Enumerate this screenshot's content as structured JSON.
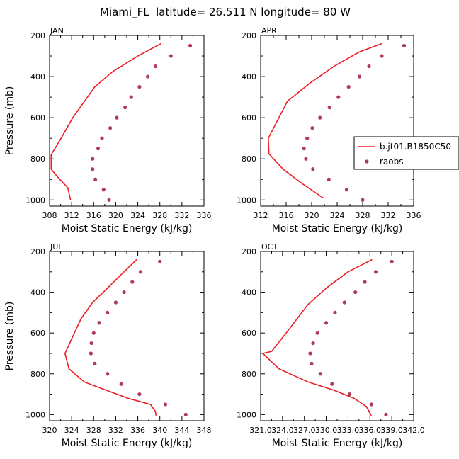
{
  "figure": {
    "title": "Miami_FL  latitude= 26.511 N longitude= 80 W"
  },
  "colors": {
    "model_line": "#ee1c24",
    "raobs_marker": "#b03a5b",
    "axis": "#000000"
  },
  "chart_data": [
    {
      "type": "line",
      "panel_label": "JAN",
      "xlabel": "Moist Static Energy (kJ/kg)",
      "ylabel": "Pressure (mb)",
      "xlim": [
        308,
        336
      ],
      "ylim": [
        200,
        1030
      ],
      "y_inverted": true,
      "x_ticks": [
        "308",
        "312",
        "316",
        "320",
        "324",
        "328",
        "332",
        "336"
      ],
      "y_ticks": [
        "200",
        "400",
        "600",
        "800",
        "1000"
      ],
      "series": [
        {
          "style": "line",
          "points": [
            [
              328.2,
              240
            ],
            [
              324,
              300
            ],
            [
              319.5,
              375
            ],
            [
              316.2,
              450
            ],
            [
              314.2,
              525
            ],
            [
              312.2,
              600
            ],
            [
              310.3,
              690
            ],
            [
              308.3,
              780
            ],
            [
              308.3,
              850
            ],
            [
              309.5,
              890
            ],
            [
              311.3,
              940
            ],
            [
              311.8,
              1000
            ]
          ]
        },
        {
          "style": "markers",
          "points": [
            [
              333.5,
              250
            ],
            [
              330,
              300
            ],
            [
              327.2,
              350
            ],
            [
              325.8,
              400
            ],
            [
              324.3,
              450
            ],
            [
              322.8,
              500
            ],
            [
              321.7,
              550
            ],
            [
              320.2,
              600
            ],
            [
              319,
              650
            ],
            [
              317.5,
              700
            ],
            [
              316.8,
              750
            ],
            [
              315.8,
              800
            ],
            [
              315.8,
              850
            ],
            [
              316.3,
              900
            ],
            [
              317.8,
              950
            ],
            [
              318.8,
              1000
            ]
          ]
        }
      ]
    },
    {
      "type": "line",
      "panel_label": "APR",
      "xlabel": "Moist Static Energy (kJ/kg)",
      "ylabel": "",
      "xlim": [
        312,
        336
      ],
      "ylim": [
        200,
        1030
      ],
      "y_inverted": true,
      "x_ticks": [
        "312",
        "316",
        "320",
        "324",
        "328",
        "332",
        "336"
      ],
      "y_ticks": [
        "200",
        "400",
        "600",
        "800",
        "1000"
      ],
      "legend": {
        "placement": "right",
        "entries": [
          {
            "label": "b.jt01.B1850C50",
            "style": "line"
          },
          {
            "label": "raobs",
            "style": "marker"
          }
        ]
      },
      "series": [
        {
          "name": "b.jt01.B1850C50",
          "style": "line",
          "points": [
            [
              331,
              240
            ],
            [
              327.5,
              280
            ],
            [
              323.5,
              350
            ],
            [
              319.8,
              430
            ],
            [
              316.2,
              520
            ],
            [
              313.2,
              700
            ],
            [
              313.3,
              775
            ],
            [
              315.5,
              850
            ],
            [
              318.5,
              920
            ],
            [
              321.8,
              990
            ]
          ]
        },
        {
          "name": "raobs",
          "style": "markers",
          "points": [
            [
              334.5,
              250
            ],
            [
              331,
              300
            ],
            [
              329,
              350
            ],
            [
              327.5,
              400
            ],
            [
              325.8,
              450
            ],
            [
              324.2,
              500
            ],
            [
              322.8,
              550
            ],
            [
              321.3,
              600
            ],
            [
              320.1,
              650
            ],
            [
              319.3,
              700
            ],
            [
              318.8,
              750
            ],
            [
              319.1,
              800
            ],
            [
              320.2,
              850
            ],
            [
              322.7,
              900
            ],
            [
              325.5,
              950
            ],
            [
              328,
              1000
            ]
          ]
        }
      ]
    },
    {
      "type": "line",
      "panel_label": "JUL",
      "xlabel": "Moist Static Energy (kJ/kg)",
      "ylabel": "Pressure (mb)",
      "xlim": [
        320,
        348
      ],
      "ylim": [
        200,
        1030
      ],
      "y_inverted": true,
      "x_ticks": [
        "320",
        "324",
        "328",
        "332",
        "336",
        "340",
        "344",
        "348"
      ],
      "y_ticks": [
        "200",
        "400",
        "600",
        "800",
        "1000"
      ],
      "series": [
        {
          "style": "line",
          "points": [
            [
              335.8,
              240
            ],
            [
              333.5,
              300
            ],
            [
              330.5,
              380
            ],
            [
              327.8,
              450
            ],
            [
              325.7,
              530
            ],
            [
              324.5,
              600
            ],
            [
              322.8,
              700
            ],
            [
              323.5,
              775
            ],
            [
              326.3,
              840
            ],
            [
              330.2,
              880
            ],
            [
              334.2,
              920
            ],
            [
              338.3,
              950
            ],
            [
              339.2,
              985
            ],
            [
              339.3,
              1005
            ]
          ]
        },
        {
          "style": "markers",
          "points": [
            [
              340,
              250
            ],
            [
              336.5,
              300
            ],
            [
              335,
              350
            ],
            [
              333.5,
              400
            ],
            [
              332,
              450
            ],
            [
              330.5,
              500
            ],
            [
              329,
              550
            ],
            [
              328,
              600
            ],
            [
              327.6,
              650
            ],
            [
              327.5,
              700
            ],
            [
              328.2,
              750
            ],
            [
              330.5,
              800
            ],
            [
              333,
              850
            ],
            [
              336.3,
              900
            ],
            [
              341,
              950
            ],
            [
              344.7,
              1000
            ]
          ]
        }
      ]
    },
    {
      "type": "line",
      "panel_label": "OCT",
      "xlabel": "Moist Static Energy (kJ/kg)",
      "ylabel": "",
      "xlim": [
        321.0,
        342.0
      ],
      "ylim": [
        200,
        1030
      ],
      "y_inverted": true,
      "x_ticks": [
        "321.0",
        "324.0",
        "327.0",
        "330.0",
        "333.0",
        "336.0",
        "339.0",
        "342.0"
      ],
      "y_ticks": [
        "200",
        "400",
        "600",
        "800",
        "1000"
      ],
      "series": [
        {
          "style": "line",
          "points": [
            [
              336.3,
              240
            ],
            [
              333,
              300
            ],
            [
              330,
              380
            ],
            [
              327.5,
              460
            ],
            [
              324.5,
              600
            ],
            [
              322.5,
              690
            ],
            [
              321.3,
              700
            ],
            [
              323.5,
              775
            ],
            [
              327.5,
              840
            ],
            [
              331,
              880
            ],
            [
              333.8,
              920
            ],
            [
              335.5,
              960
            ],
            [
              336.2,
              1005
            ]
          ]
        },
        {
          "style": "markers",
          "points": [
            [
              339,
              250
            ],
            [
              336.8,
              300
            ],
            [
              335.3,
              350
            ],
            [
              334,
              400
            ],
            [
              332.5,
              450
            ],
            [
              331.2,
              500
            ],
            [
              330,
              550
            ],
            [
              328.8,
              600
            ],
            [
              328.2,
              650
            ],
            [
              327.8,
              700
            ],
            [
              328,
              750
            ],
            [
              329.2,
              800
            ],
            [
              330.8,
              850
            ],
            [
              333.2,
              900
            ],
            [
              336.2,
              950
            ],
            [
              338.2,
              1000
            ]
          ]
        }
      ]
    }
  ]
}
